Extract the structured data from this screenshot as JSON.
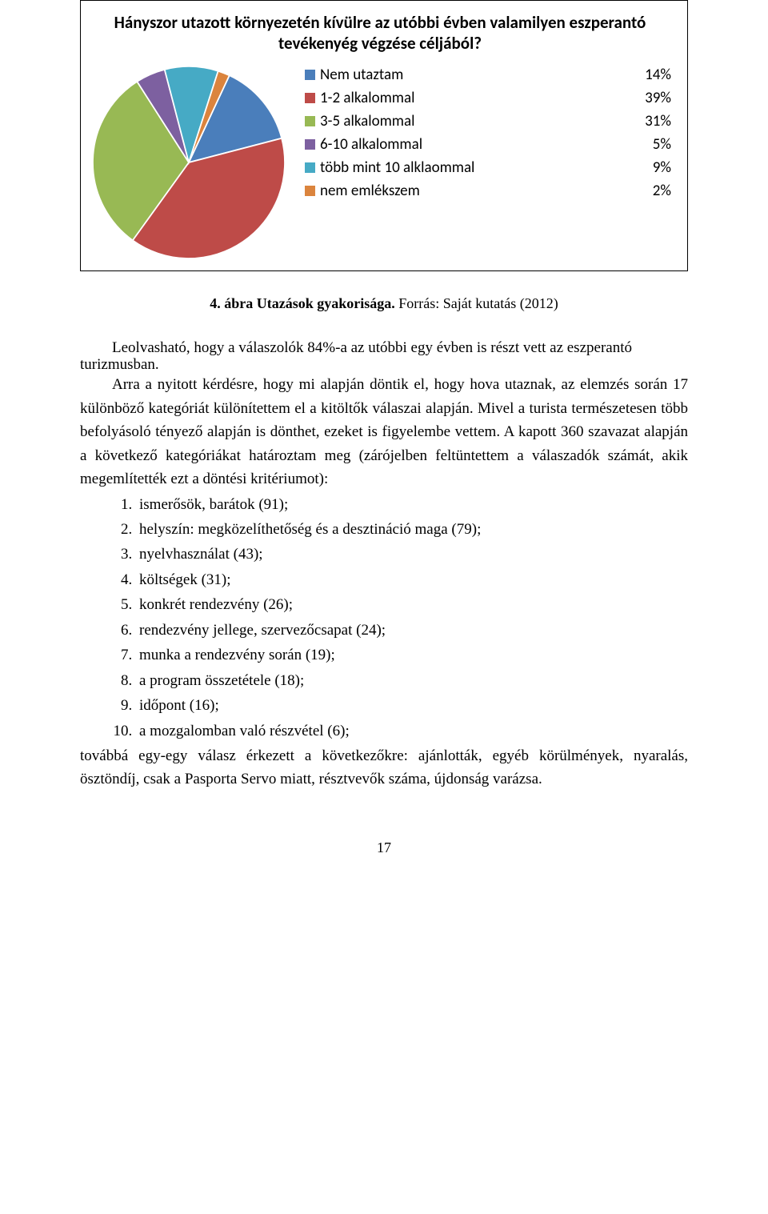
{
  "chart": {
    "title": "Hányszor utazott környezetén kívülre az utóbbi évben valamilyen eszperantó tevékenyég végzése céljából?",
    "type": "pie",
    "background_color": "#ffffff",
    "border_color": "#000000",
    "pie_size": 250,
    "title_fontsize": 21,
    "label_fontsize": 19,
    "legend": [
      {
        "label": "Nem utaztam",
        "pct": "14%",
        "value": 14,
        "color": "#4a7ebb"
      },
      {
        "label": "1-2 alkalommal",
        "pct": "39%",
        "value": 39,
        "color": "#be4b48"
      },
      {
        "label": "3-5 alkalommal",
        "pct": "31%",
        "value": 31,
        "color": "#98b954"
      },
      {
        "label": "6-10 alkalommal",
        "pct": "5%",
        "value": 5,
        "color": "#7d60a0"
      },
      {
        "label": "több mint 10 alklaommal",
        "pct": "9%",
        "value": 9,
        "color": "#46aac5"
      },
      {
        "label": "nem emlékszem",
        "pct": "2%",
        "value": 2,
        "color": "#db843d"
      }
    ]
  },
  "caption": {
    "bold": "4. ábra Utazások gyakorisága.",
    "rest": " Forrás: Saját kutatás (2012)"
  },
  "body": {
    "p1a": "Leolvasható, hogy a válaszolók 84%-a az utóbbi egy évben is részt vett az eszperantó ",
    "p1b": "turizmusban.",
    "p2": "Arra a nyitott kérdésre, hogy mi alapján döntik el, hogy hova utaznak, az elemzés során 17 különböző kategóriát különítettem el a kitöltők válaszai alapján. Mivel a turista természetesen több befolyásoló tényező alapján is dönthet, ezeket is figyelembe vettem. A kapott 360 szavazat alapján a következő kategóriákat határoztam meg (zárójelben feltüntettem a válaszadók számát, akik megemlítették ezt a döntési kritériumot):",
    "criteria": [
      "ismerősök, barátok (91);",
      "helyszín: megközelíthetőség és a desztináció maga (79);",
      "nyelvhasználat (43);",
      "költségek (31);",
      "konkrét rendezvény (26);",
      "rendezvény jellege, szervezőcsapat (24);",
      "munka a rendezvény során (19);",
      "a program összetétele (18);",
      "időpont (16);",
      "a mozgalomban való részvétel (6);"
    ],
    "p3": "továbbá egy-egy válasz érkezett a következőkre: ajánlották, egyéb körülmények, nyaralás, ösztöndíj, csak a Pasporta Servo miatt, résztvevők száma, újdonság varázsa."
  },
  "page_number": "17"
}
